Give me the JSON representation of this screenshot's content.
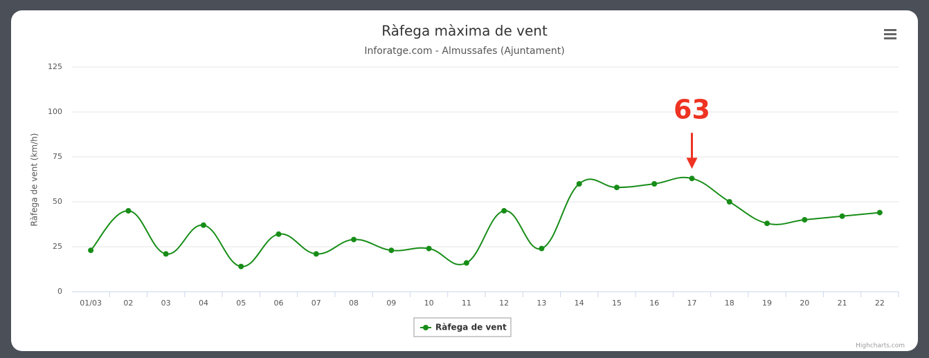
{
  "chart_data": {
    "type": "line",
    "title": "Ràfega màxima de vent",
    "subtitle": "Inforatge.com - Almussafes (Ajuntament)",
    "y_label": "Ràfega de vent (km/h)",
    "categories": [
      "01/03",
      "02",
      "03",
      "04",
      "05",
      "06",
      "07",
      "08",
      "09",
      "10",
      "11",
      "12",
      "13",
      "14",
      "15",
      "16",
      "17",
      "18",
      "19",
      "20",
      "21",
      "22"
    ],
    "series": [
      {
        "name": "Ràfega de vent",
        "color": "#178d17",
        "values": [
          23,
          45,
          21,
          37,
          14,
          32,
          21,
          29,
          23,
          24,
          16,
          45,
          24,
          60,
          58,
          60,
          63,
          50,
          38,
          40,
          42,
          44
        ]
      }
    ],
    "ylim": [
      0,
      125
    ],
    "yticks": [
      0,
      25,
      50,
      75,
      100,
      125
    ],
    "grid": true,
    "legend": "bottom",
    "annotation": "63",
    "credit": "Highcharts.com"
  }
}
